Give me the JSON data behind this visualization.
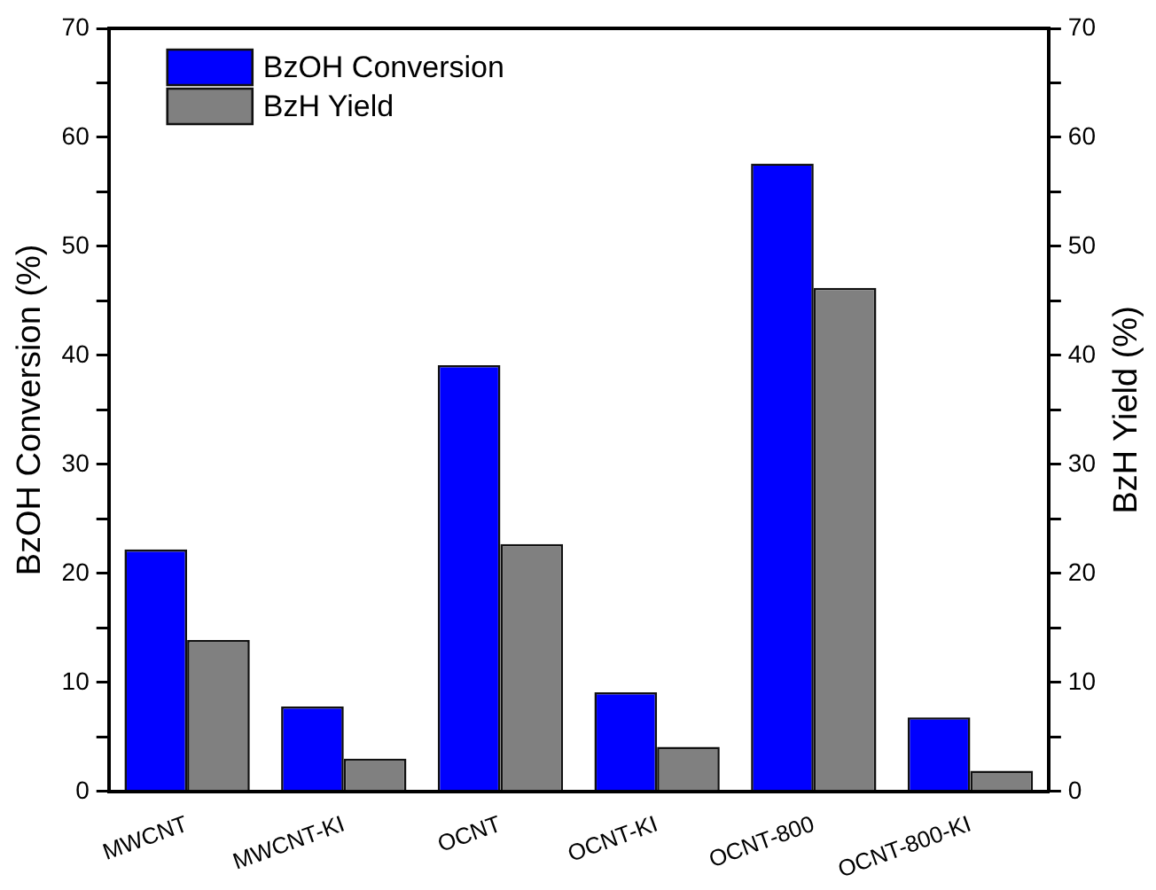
{
  "chart_data": {
    "type": "bar",
    "categories": [
      "MWCNT",
      "MWCNT-KI",
      "OCNT",
      "OCNT-KI",
      "OCNT-800",
      "OCNT-800-KI"
    ],
    "series": [
      {
        "name": "BzOH Conversion",
        "color": "#0000ff",
        "values": [
          22.2,
          7.8,
          39.1,
          9.1,
          57.6,
          6.8
        ]
      },
      {
        "name": "BzH Yield",
        "color": "#808080",
        "axis": "y2",
        "values": [
          13.9,
          3.0,
          22.7,
          4.1,
          46.2,
          1.9
        ]
      }
    ],
    "ylabel": "BzOH Conversion (%)",
    "y2label": "BzH Yield (%)",
    "ylim": [
      0,
      70
    ],
    "yticks": [
      0,
      {
        "value": 5,
        "label": null
      },
      10,
      {
        "value": 15,
        "label": null
      },
      20,
      {
        "value": 25,
        "label": null
      },
      30,
      {
        "value": 35,
        "label": null
      },
      40,
      {
        "value": 45,
        "label": null
      },
      50,
      {
        "value": 55,
        "label": null
      },
      60,
      {
        "value": 65,
        "label": null
      },
      70
    ],
    "y2lim": [
      0,
      70
    ],
    "y2ticks": [
      0,
      {
        "value": 5,
        "label": null
      },
      10,
      {
        "value": 15,
        "label": null
      },
      20,
      {
        "value": 25,
        "label": null
      },
      30,
      {
        "value": 35,
        "label": null
      },
      40,
      {
        "value": 45,
        "label": null
      },
      50,
      {
        "value": 55,
        "label": null
      },
      60,
      {
        "value": 65,
        "label": null
      },
      70
    ],
    "grid": false,
    "legend": "top left"
  }
}
